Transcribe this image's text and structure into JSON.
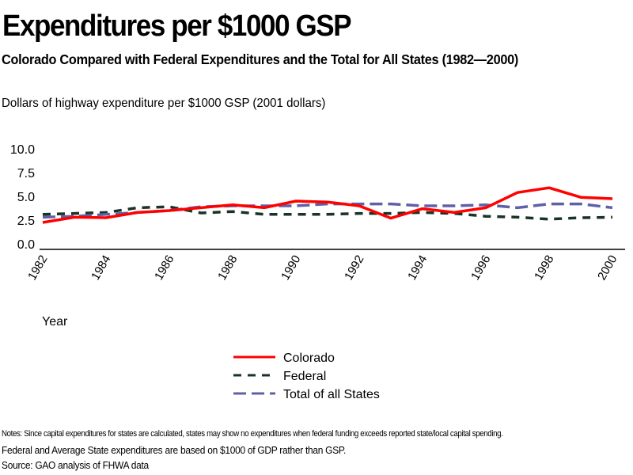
{
  "chart_data": {
    "type": "line",
    "title": "Expenditures per $1000 GSP",
    "subtitle": "Colorado Compared with Federal Expenditures and the Total for All States (1982—2000)",
    "ylabel": "Dollars of highway expenditure per $1000 GSP (2001 dollars)",
    "xlabel": "Year",
    "ylim": [
      0,
      10
    ],
    "yticks": [
      "0.0",
      "2.5",
      "5.0",
      "7.5",
      "10.0"
    ],
    "ytick_values": [
      0,
      2.5,
      5,
      7.5,
      10
    ],
    "xticks": [
      "1982",
      "1984",
      "1986",
      "1988",
      "1990",
      "1992",
      "1994",
      "1996",
      "1998",
      "2000"
    ],
    "x": [
      1982,
      1983,
      1984,
      1985,
      1986,
      1987,
      1988,
      1989,
      1990,
      1991,
      1992,
      1993,
      1994,
      1995,
      1996,
      1997,
      1998,
      1999,
      2000
    ],
    "grid": false,
    "legend_position": "bottom-center",
    "series": [
      {
        "name": "Colorado",
        "color": "#ff0000",
        "style": "solid",
        "values": [
          2.25,
          2.8,
          2.75,
          3.3,
          3.5,
          3.8,
          4.1,
          3.8,
          4.5,
          4.4,
          4.0,
          2.7,
          3.7,
          3.3,
          3.8,
          5.4,
          5.9,
          4.9,
          4.75
        ]
      },
      {
        "name": "Federal",
        "color": "#1a3326",
        "style": "short-dash",
        "values": [
          3.1,
          3.2,
          3.3,
          3.8,
          3.9,
          3.25,
          3.4,
          3.1,
          3.1,
          3.1,
          3.2,
          3.2,
          3.3,
          3.2,
          2.9,
          2.8,
          2.6,
          2.75,
          2.8
        ]
      },
      {
        "name": "Total of all States",
        "color": "#6060a8",
        "style": "long-dash",
        "values": [
          2.8,
          2.9,
          3.1,
          3.3,
          3.5,
          3.9,
          4.0,
          4.0,
          4.0,
          4.2,
          4.2,
          4.2,
          4.0,
          4.0,
          4.1,
          3.8,
          4.2,
          4.2,
          3.8
        ]
      }
    ]
  },
  "footer": {
    "notes": "Notes: Since capital expenditures for states are calculated, states may show no expenditures when federal funding exceeds reported state/local capital spending.",
    "note2": "Federal and Average State expenditures are based on $1000 of GDP rather than GSP.",
    "source": "Source: GAO analysis of FHWA data"
  }
}
